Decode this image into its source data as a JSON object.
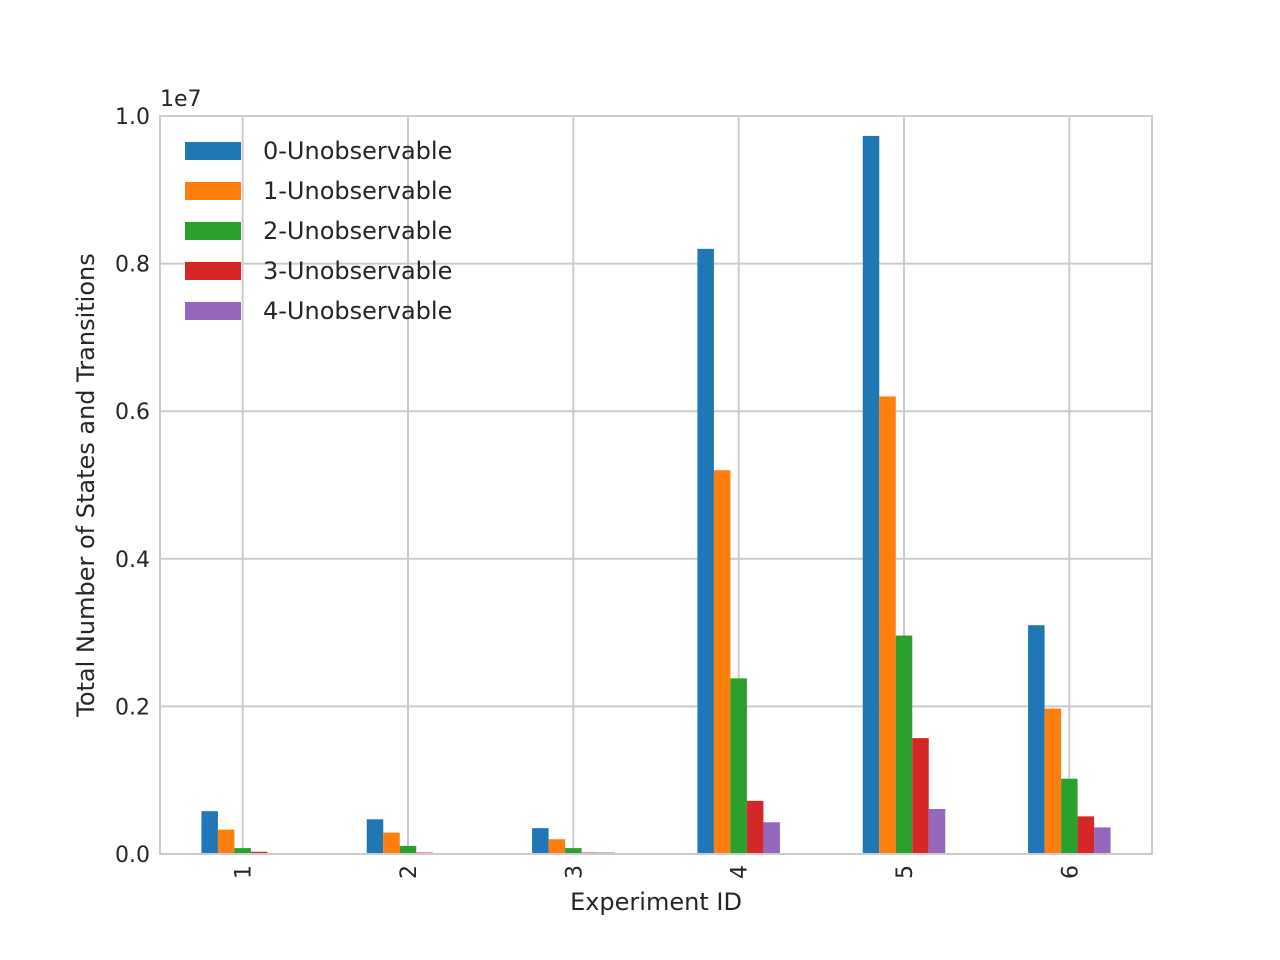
{
  "chart_data": {
    "type": "bar",
    "offset_label": "1e7",
    "xlabel": "Experiment ID",
    "ylabel": "Total Number of States and Transitions",
    "categories": [
      "1",
      "2",
      "3",
      "4",
      "5",
      "6"
    ],
    "ylim": [
      0,
      1.0
    ],
    "yticks": [
      0.0,
      0.2,
      0.4,
      0.6,
      0.8,
      1.0
    ],
    "ytick_labels": [
      "0.0",
      "0.2",
      "0.4",
      "0.6",
      "0.8",
      "1.0"
    ],
    "grid": true,
    "legend_position": "upper-left",
    "series": [
      {
        "name": "0-Unobservable",
        "color": "#1f77b4",
        "values": [
          0.058,
          0.047,
          0.035,
          0.82,
          0.973,
          0.31
        ]
      },
      {
        "name": "1-Unobservable",
        "color": "#ff7f0e",
        "values": [
          0.033,
          0.029,
          0.02,
          0.52,
          0.62,
          0.197
        ]
      },
      {
        "name": "2-Unobservable",
        "color": "#2ca02c",
        "values": [
          0.008,
          0.011,
          0.008,
          0.238,
          0.296,
          0.102
        ]
      },
      {
        "name": "3-Unobservable",
        "color": "#d62728",
        "values": [
          0.003,
          0.002,
          0.002,
          0.072,
          0.157,
          0.051
        ]
      },
      {
        "name": "4-Unobservable",
        "color": "#9467bd",
        "values": [
          0.001,
          0.001,
          0.002,
          0.043,
          0.061,
          0.036
        ]
      }
    ]
  }
}
